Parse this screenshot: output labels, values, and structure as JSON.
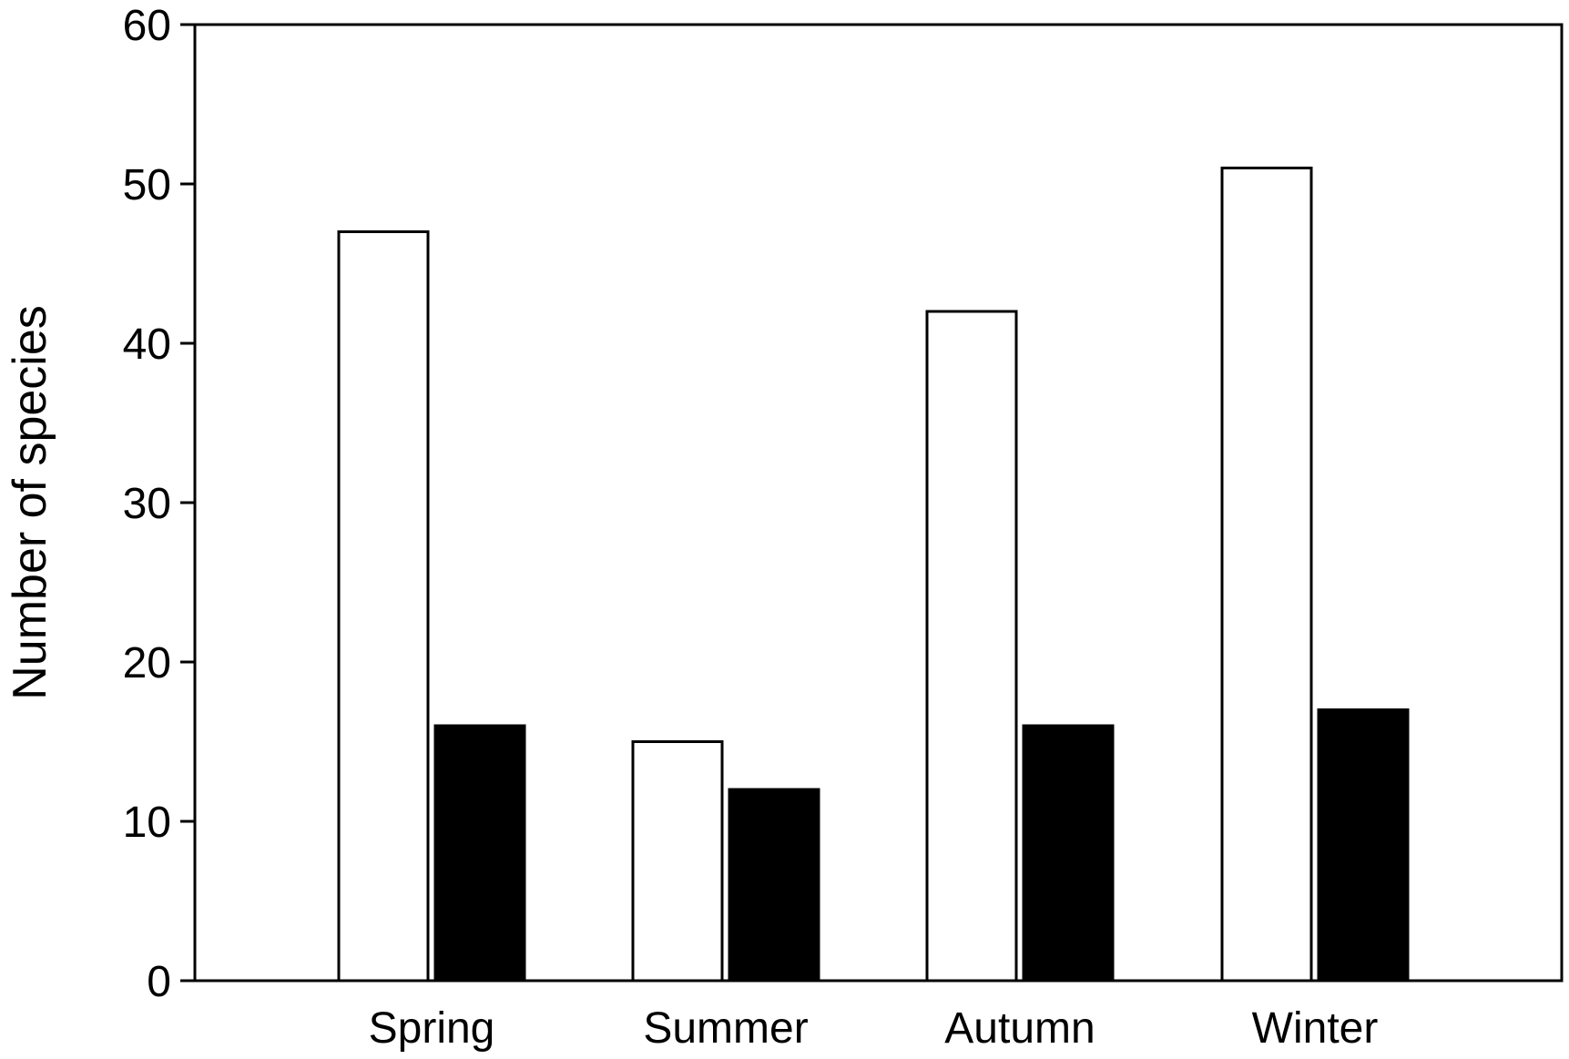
{
  "chart_data": {
    "type": "bar",
    "title": "",
    "xlabel": "",
    "ylabel": "Number of species",
    "categories": [
      "Spring",
      "Summer",
      "Autumn",
      "Winter"
    ],
    "series": [
      {
        "fill": "#ffffff",
        "stroke": "#000000",
        "values": [
          47,
          15,
          42,
          51
        ]
      },
      {
        "fill": "#000000",
        "stroke": "#000000",
        "values": [
          16,
          12,
          16,
          17
        ]
      }
    ],
    "ylim": [
      0,
      60
    ],
    "yticks": [
      "0",
      "10",
      "20",
      "30",
      "40",
      "50",
      "60"
    ],
    "grid": false,
    "legend": "none"
  }
}
